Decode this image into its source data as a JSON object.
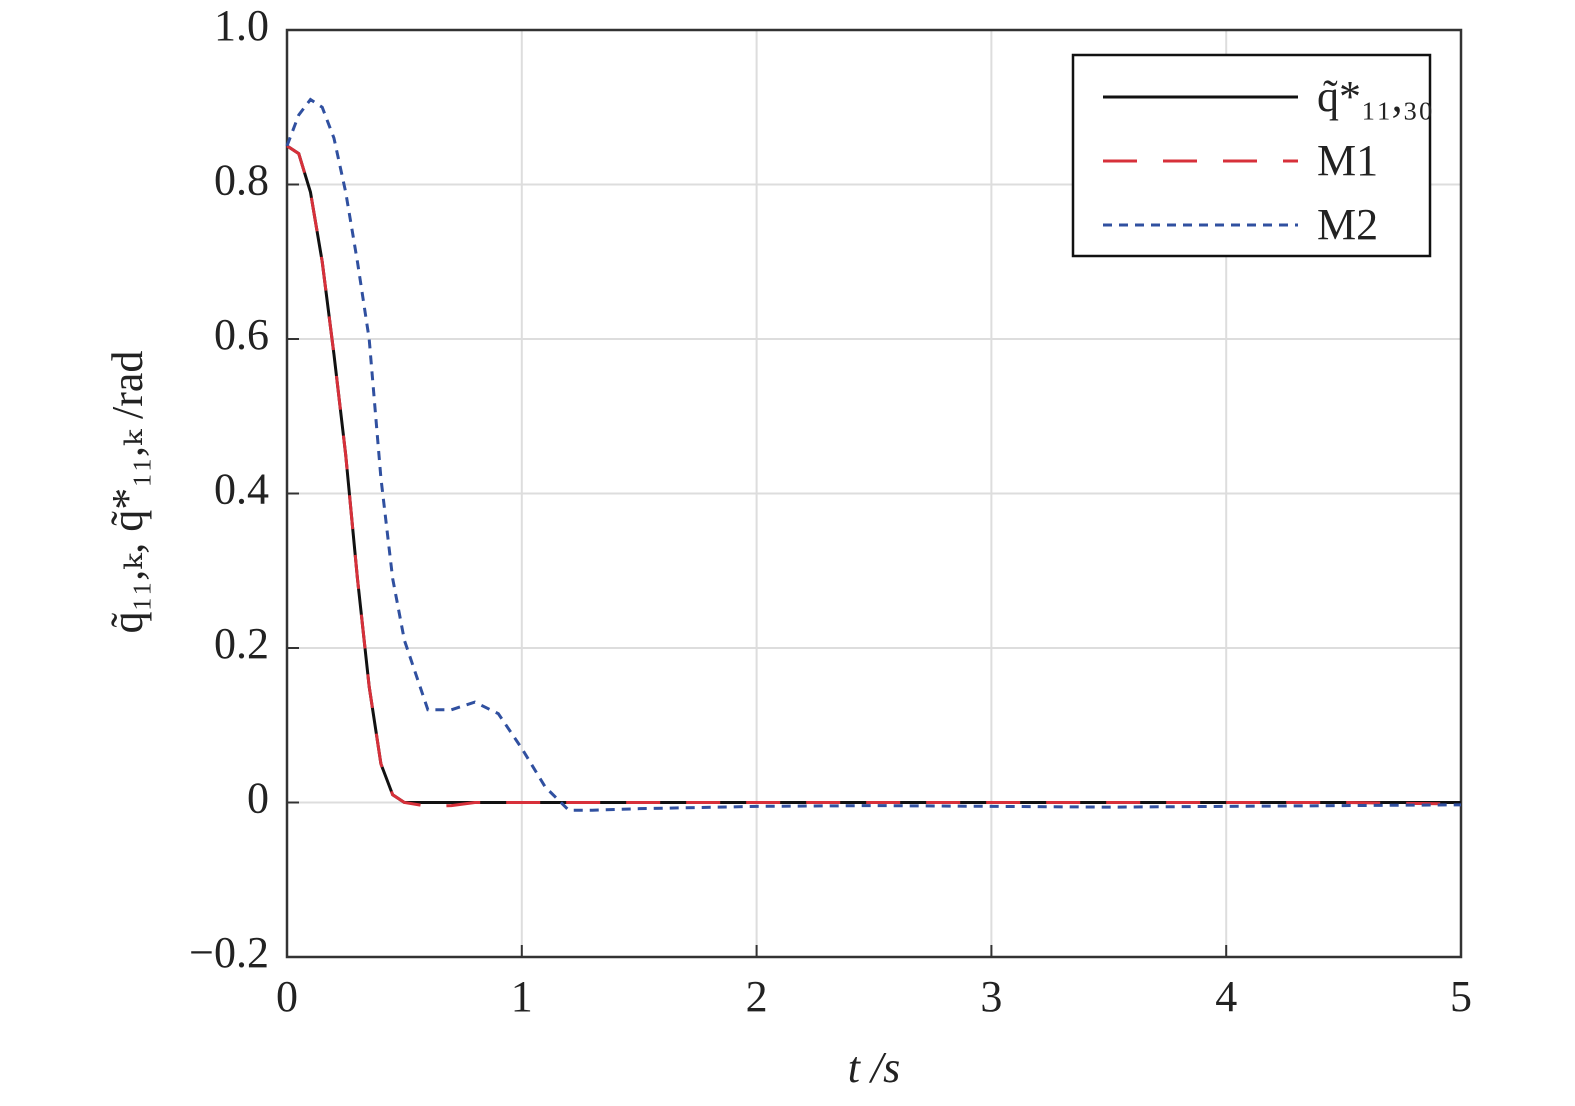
{
  "chart_data": {
    "type": "line",
    "x_label": "t /s",
    "y_label": "q̃₁₁,ₖ, q̃*₁₁,ₖ /rad",
    "x": [
      0,
      0.05,
      0.1,
      0.15,
      0.2,
      0.25,
      0.3,
      0.35,
      0.4,
      0.45,
      0.5,
      0.6,
      0.7,
      0.8,
      0.9,
      1.0,
      1.1,
      1.2,
      1.3,
      1.5,
      2,
      2.5,
      3,
      3.5,
      4,
      4.5,
      5
    ],
    "series": [
      {
        "name": "q̃*₁₁,₃₀",
        "color": "#111111",
        "dash": "solid",
        "values": [
          0.85,
          0.84,
          0.79,
          0.7,
          0.58,
          0.45,
          0.29,
          0.15,
          0.05,
          0.01,
          0,
          0,
          0,
          0,
          0,
          0,
          0,
          0,
          0,
          0,
          0,
          0,
          0,
          0,
          0,
          0,
          0
        ]
      },
      {
        "name": "M1",
        "color": "#d7303a",
        "dash": "long",
        "values": [
          0.85,
          0.84,
          0.79,
          0.7,
          0.58,
          0.45,
          0.29,
          0.15,
          0.05,
          0.01,
          0,
          -0.005,
          -0.004,
          0,
          0,
          0,
          0,
          0,
          0,
          0,
          0,
          0,
          0,
          0,
          0,
          0,
          -0.002
        ]
      },
      {
        "name": "M2",
        "color": "#3050a0",
        "dash": "short",
        "values": [
          0.85,
          0.89,
          0.91,
          0.9,
          0.86,
          0.79,
          0.7,
          0.6,
          0.42,
          0.29,
          0.21,
          0.12,
          0.12,
          0.13,
          0.115,
          0.07,
          0.02,
          -0.01,
          -0.01,
          -0.008,
          -0.005,
          -0.004,
          -0.005,
          -0.006,
          -0.005,
          -0.004,
          -0.003
        ]
      }
    ],
    "xlim": [
      0,
      5
    ],
    "ylim": [
      -0.2,
      1
    ],
    "xticks": [
      0,
      1,
      2,
      3,
      4,
      5
    ],
    "yticks": [
      {
        "value": -0.2,
        "label": "−0.2"
      },
      0,
      0.2,
      0.4,
      0.6,
      0.8,
      {
        "value": 1,
        "label": "1.0"
      }
    ],
    "grid": true,
    "legend": "upper right"
  }
}
